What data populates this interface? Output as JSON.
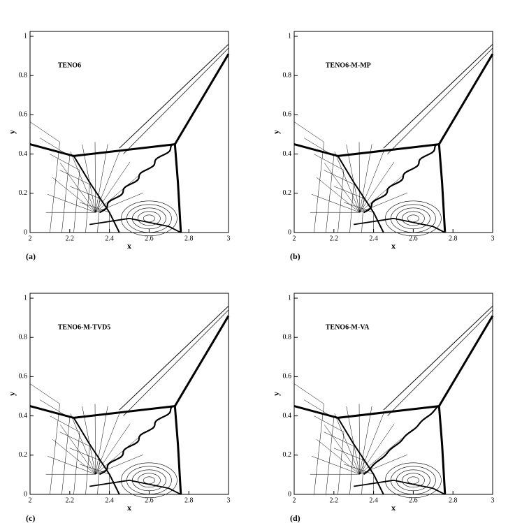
{
  "chart_data": [
    {
      "type": "contour",
      "title": "TENO6",
      "label": "(a)",
      "x_label": "x",
      "y_label": "y",
      "xlim": [
        2,
        3
      ],
      "ylim": [
        0,
        1.025
      ],
      "xticks": [
        2,
        2.2,
        2.4,
        2.6,
        2.8,
        3
      ],
      "yticks": [
        0,
        0.2,
        0.4,
        0.6,
        0.8,
        1
      ]
    },
    {
      "type": "contour",
      "title": "TENO6-M-MP",
      "label": "(b)",
      "x_label": "x",
      "y_label": "y",
      "xlim": [
        2,
        3
      ],
      "ylim": [
        0,
        1.025
      ],
      "xticks": [
        2,
        2.2,
        2.4,
        2.6,
        2.8,
        3
      ],
      "yticks": [
        0,
        0.2,
        0.4,
        0.6,
        0.8,
        1
      ]
    },
    {
      "type": "contour",
      "title": "TENO6-M-TVD5",
      "label": "(c)",
      "x_label": "x",
      "y_label": "y",
      "xlim": [
        2,
        3
      ],
      "ylim": [
        0,
        1.025
      ],
      "xticks": [
        2,
        2.2,
        2.4,
        2.6,
        2.8,
        3
      ],
      "yticks": [
        0,
        0.2,
        0.4,
        0.6,
        0.8,
        1
      ]
    },
    {
      "type": "contour",
      "title": "TENO6-M-VA",
      "label": "(d)",
      "x_label": "x",
      "y_label": "y",
      "xlim": [
        2,
        3
      ],
      "ylim": [
        0,
        1.025
      ],
      "xticks": [
        2,
        2.2,
        2.4,
        2.6,
        2.8,
        3
      ],
      "yticks": [
        0,
        0.2,
        0.4,
        0.6,
        0.8,
        1
      ]
    }
  ]
}
